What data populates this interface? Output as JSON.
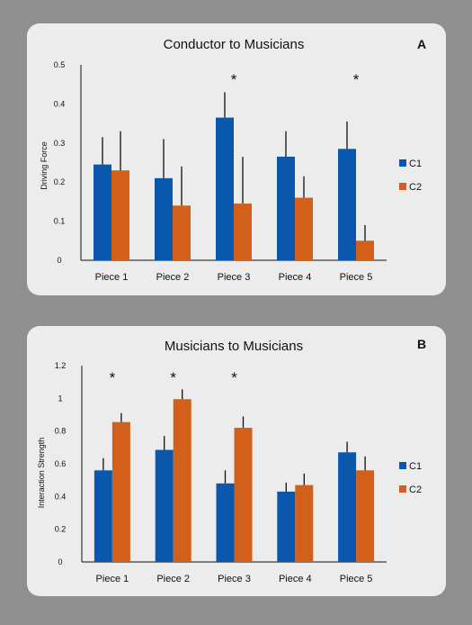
{
  "chart_data": [
    {
      "type": "bar",
      "panel_letter": "A",
      "title": "Conductor to Musicians",
      "ylabel": "Driving Force",
      "xlabel": "",
      "ylim": [
        0,
        0.5
      ],
      "yticks": [
        0,
        0.1,
        0.2,
        0.3,
        0.4,
        0.5
      ],
      "ytick_labels": [
        "0",
        "0.1",
        "0.2",
        "0.3",
        "0.4",
        "0.5"
      ],
      "categories": [
        "Piece 1",
        "Piece 2",
        "Piece 3",
        "Piece 4",
        "Piece 5"
      ],
      "series": [
        {
          "name": "C1",
          "color": "#0a58ad",
          "values": [
            0.245,
            0.21,
            0.365,
            0.265,
            0.285
          ],
          "errors": [
            0.07,
            0.1,
            0.065,
            0.065,
            0.07
          ]
        },
        {
          "name": "C2",
          "color": "#d2601a",
          "values": [
            0.23,
            0.14,
            0.145,
            0.16,
            0.05
          ],
          "errors": [
            0.1,
            0.1,
            0.12,
            0.055,
            0.04
          ]
        }
      ],
      "significance": [
        "",
        "",
        "*",
        "",
        "*"
      ],
      "legend": "right"
    },
    {
      "type": "bar",
      "panel_letter": "B",
      "title": "Musicians to Musicians",
      "ylabel": "Interaction Strength",
      "xlabel": "",
      "ylim": [
        0,
        1.2
      ],
      "yticks": [
        0,
        0.2,
        0.4,
        0.6,
        0.8,
        1,
        1.2
      ],
      "ytick_labels": [
        "0",
        "0.2",
        "0.4",
        "0.6",
        "0.8",
        "1",
        "1.2"
      ],
      "categories": [
        "Piece 1",
        "Piece 2",
        "Piece 3",
        "Piece 4",
        "Piece 5"
      ],
      "series": [
        {
          "name": "C1",
          "color": "#0a58ad",
          "values": [
            0.56,
            0.685,
            0.48,
            0.43,
            0.67
          ],
          "errors": [
            0.075,
            0.085,
            0.08,
            0.055,
            0.065
          ]
        },
        {
          "name": "C2",
          "color": "#d2601a",
          "values": [
            0.855,
            0.995,
            0.82,
            0.47,
            0.56
          ],
          "errors": [
            0.055,
            0.06,
            0.07,
            0.07,
            0.085
          ]
        }
      ],
      "significance": [
        "*",
        "*",
        "*",
        "",
        ""
      ],
      "legend": "right"
    }
  ]
}
